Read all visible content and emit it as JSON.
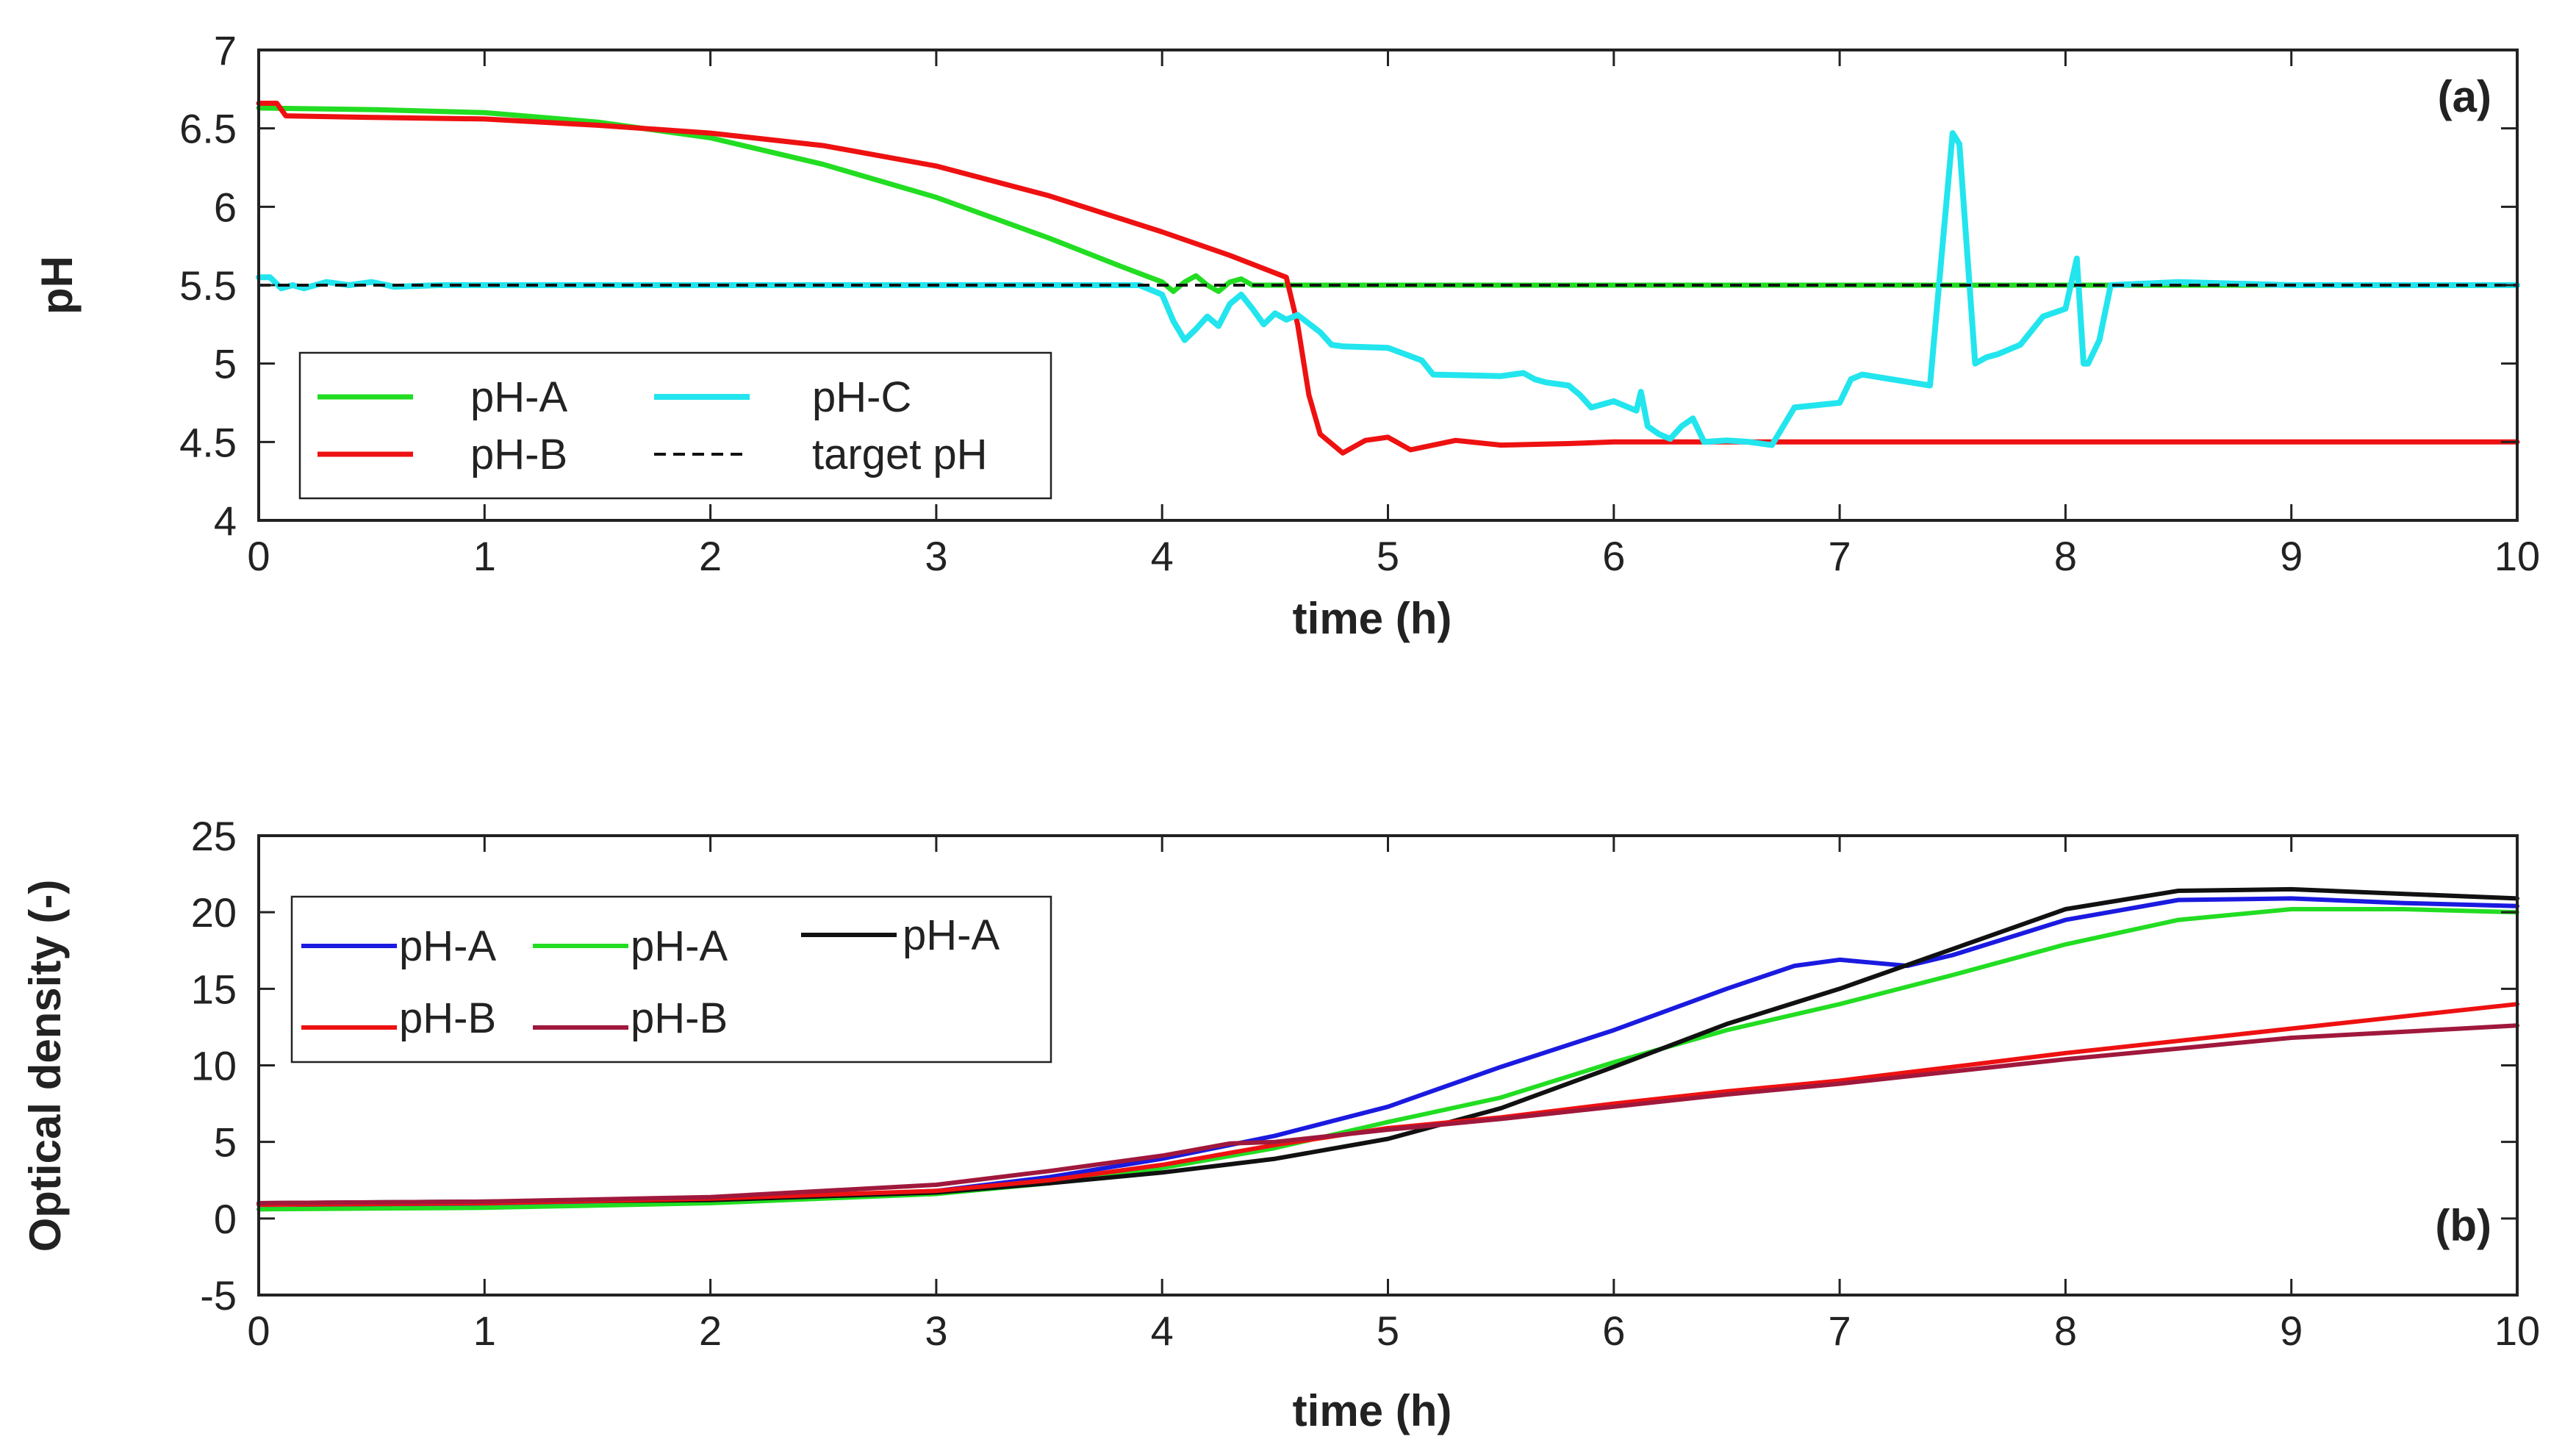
{
  "colors": {
    "green": "#22dd22",
    "red": "#ee1111",
    "cyan": "#22e5ee",
    "blue": "#1a1ae0",
    "black": "#111111",
    "maroon": "#a0183c",
    "target": "#111111"
  },
  "chart_data": [
    {
      "type": "line",
      "panel_label": "(a)",
      "xlabel": "time (h)",
      "ylabel": "pH",
      "xlim": [
        0,
        10
      ],
      "ylim": [
        4,
        7
      ],
      "xticks": [
        0,
        1,
        2,
        3,
        4,
        5,
        6,
        7,
        8,
        9,
        10
      ],
      "yticks": [
        4,
        4.5,
        5,
        5.5,
        6,
        6.5,
        7
      ],
      "grid": false,
      "legend_position": "lower-left",
      "series": [
        {
          "name": "pH-A",
          "color_key": "green",
          "dash": false,
          "width": 7,
          "x": [
            0,
            0.5,
            1,
            1.5,
            2,
            2.5,
            3,
            3.5,
            3.8,
            4.0,
            4.05,
            4.1,
            4.15,
            4.2,
            4.25,
            4.3,
            4.35,
            4.4,
            4.5,
            4.6,
            5,
            6,
            7,
            8,
            9,
            10
          ],
          "y": [
            6.63,
            6.62,
            6.6,
            6.54,
            6.44,
            6.27,
            6.06,
            5.8,
            5.63,
            5.52,
            5.46,
            5.52,
            5.56,
            5.5,
            5.46,
            5.52,
            5.54,
            5.5,
            5.5,
            5.5,
            5.5,
            5.5,
            5.5,
            5.5,
            5.5,
            5.5
          ]
        },
        {
          "name": "pH-B",
          "color_key": "red",
          "dash": false,
          "width": 7,
          "x": [
            0,
            0.08,
            0.12,
            0.5,
            1,
            1.5,
            2,
            2.5,
            3,
            3.5,
            4,
            4.3,
            4.55,
            4.6,
            4.65,
            4.7,
            4.8,
            4.9,
            5.0,
            5.1,
            5.2,
            5.3,
            5.5,
            5.8,
            6,
            7,
            8,
            9,
            10
          ],
          "y": [
            6.66,
            6.66,
            6.58,
            6.57,
            6.56,
            6.52,
            6.47,
            6.39,
            6.26,
            6.07,
            5.84,
            5.69,
            5.55,
            5.25,
            4.8,
            4.55,
            4.43,
            4.51,
            4.53,
            4.45,
            4.48,
            4.51,
            4.48,
            4.49,
            4.5,
            4.5,
            4.5,
            4.5,
            4.5
          ]
        },
        {
          "name": "pH-C",
          "color_key": "cyan",
          "dash": false,
          "width": 8,
          "x": [
            0,
            0.05,
            0.1,
            0.15,
            0.2,
            0.3,
            0.4,
            0.5,
            0.6,
            0.8,
            1,
            2,
            3,
            3.9,
            4.0,
            4.05,
            4.1,
            4.15,
            4.2,
            4.25,
            4.3,
            4.35,
            4.4,
            4.45,
            4.5,
            4.55,
            4.6,
            4.7,
            4.75,
            4.8,
            5.0,
            5.15,
            5.2,
            5.5,
            5.6,
            5.65,
            5.7,
            5.8,
            5.85,
            5.9,
            6.0,
            6.1,
            6.12,
            6.15,
            6.2,
            6.25,
            6.3,
            6.35,
            6.4,
            6.5,
            6.6,
            6.7,
            6.75,
            6.8,
            7.0,
            7.05,
            7.1,
            7.4,
            7.5,
            7.53,
            7.6,
            7.65,
            7.7,
            7.8,
            7.9,
            8.0,
            8.05,
            8.08,
            8.1,
            8.15,
            8.2,
            8.5,
            9,
            10
          ],
          "y": [
            5.55,
            5.55,
            5.48,
            5.5,
            5.48,
            5.52,
            5.5,
            5.52,
            5.49,
            5.5,
            5.5,
            5.5,
            5.5,
            5.5,
            5.44,
            5.27,
            5.15,
            5.22,
            5.3,
            5.24,
            5.38,
            5.44,
            5.35,
            5.25,
            5.32,
            5.28,
            5.31,
            5.2,
            5.12,
            5.11,
            5.1,
            5.02,
            4.93,
            4.92,
            4.94,
            4.9,
            4.88,
            4.86,
            4.8,
            4.72,
            4.76,
            4.7,
            4.82,
            4.6,
            4.55,
            4.52,
            4.6,
            4.65,
            4.5,
            4.51,
            4.5,
            4.48,
            4.6,
            4.72,
            4.75,
            4.9,
            4.93,
            4.86,
            6.47,
            6.4,
            5.0,
            5.04,
            5.06,
            5.12,
            5.3,
            5.35,
            5.67,
            5.0,
            5.0,
            5.15,
            5.5,
            5.52,
            5.5,
            5.5
          ]
        },
        {
          "name": "target pH",
          "color_key": "target",
          "dash": true,
          "width": 4,
          "x": [
            0,
            10
          ],
          "y": [
            5.5,
            5.5
          ]
        }
      ]
    },
    {
      "type": "line",
      "panel_label": "(b)",
      "xlabel": "time (h)",
      "ylabel": "Optical density (-)",
      "xlim": [
        0,
        10
      ],
      "ylim": [
        -5,
        25
      ],
      "xticks": [
        0,
        1,
        2,
        3,
        4,
        5,
        6,
        7,
        8,
        9,
        10
      ],
      "yticks": [
        -5,
        0,
        5,
        10,
        15,
        20,
        25
      ],
      "grid": false,
      "legend_position": "upper-left",
      "series": [
        {
          "name": "pH-A",
          "color_key": "blue",
          "width": 6,
          "x": [
            0,
            1,
            2,
            3,
            3.5,
            4,
            4.5,
            5,
            5.5,
            6,
            6.5,
            6.8,
            7.0,
            7.3,
            7.5,
            8,
            8.5,
            9,
            9.5,
            10
          ],
          "y": [
            0.6,
            0.8,
            1.1,
            1.8,
            2.7,
            3.9,
            5.4,
            7.3,
            9.9,
            12.3,
            15.0,
            16.5,
            16.9,
            16.5,
            17.2,
            19.5,
            20.8,
            20.9,
            20.6,
            20.4
          ]
        },
        {
          "name": "pH-A",
          "color_key": "green",
          "width": 6,
          "x": [
            0,
            1,
            2,
            3,
            3.5,
            4,
            4.5,
            5,
            5.5,
            6,
            6.5,
            7,
            7.5,
            8,
            8.5,
            9,
            9.5,
            10
          ],
          "y": [
            0.6,
            0.7,
            1.0,
            1.6,
            2.3,
            3.3,
            4.6,
            6.3,
            7.9,
            10.2,
            12.3,
            14.0,
            15.9,
            17.9,
            19.5,
            20.2,
            20.2,
            20.0
          ]
        },
        {
          "name": "pH-A",
          "color_key": "black",
          "width": 6,
          "x": [
            0,
            1,
            2,
            3,
            3.5,
            4,
            4.5,
            5,
            5.5,
            6,
            6.5,
            7,
            7.5,
            8,
            8.5,
            9,
            9.5,
            10
          ],
          "y": [
            1.0,
            1.1,
            1.2,
            1.7,
            2.3,
            3.0,
            3.9,
            5.2,
            7.2,
            9.9,
            12.7,
            15.0,
            17.6,
            20.2,
            21.4,
            21.5,
            21.2,
            20.9
          ]
        },
        {
          "name": "pH-B",
          "color_key": "red",
          "width": 6,
          "x": [
            0,
            1,
            2,
            3,
            3.5,
            4,
            4.5,
            5,
            5.5,
            6,
            6.5,
            7,
            7.5,
            8,
            8.5,
            9,
            9.5,
            10
          ],
          "y": [
            0.9,
            1.0,
            1.3,
            1.8,
            2.5,
            3.5,
            4.8,
            5.9,
            6.6,
            7.5,
            8.3,
            9.0,
            9.9,
            10.8,
            11.6,
            12.4,
            13.2,
            14.0
          ]
        },
        {
          "name": "pH-B",
          "color_key": "maroon",
          "width": 6,
          "x": [
            0,
            1,
            2,
            3,
            3.5,
            4,
            4.3,
            4.5,
            5,
            5.5,
            6,
            6.5,
            7,
            7.5,
            8,
            8.5,
            9,
            9.5,
            10
          ],
          "y": [
            1.0,
            1.1,
            1.4,
            2.2,
            3.1,
            4.1,
            4.9,
            5.0,
            5.8,
            6.5,
            7.3,
            8.1,
            8.8,
            9.6,
            10.4,
            11.1,
            11.8,
            12.2,
            12.6
          ]
        }
      ]
    }
  ]
}
